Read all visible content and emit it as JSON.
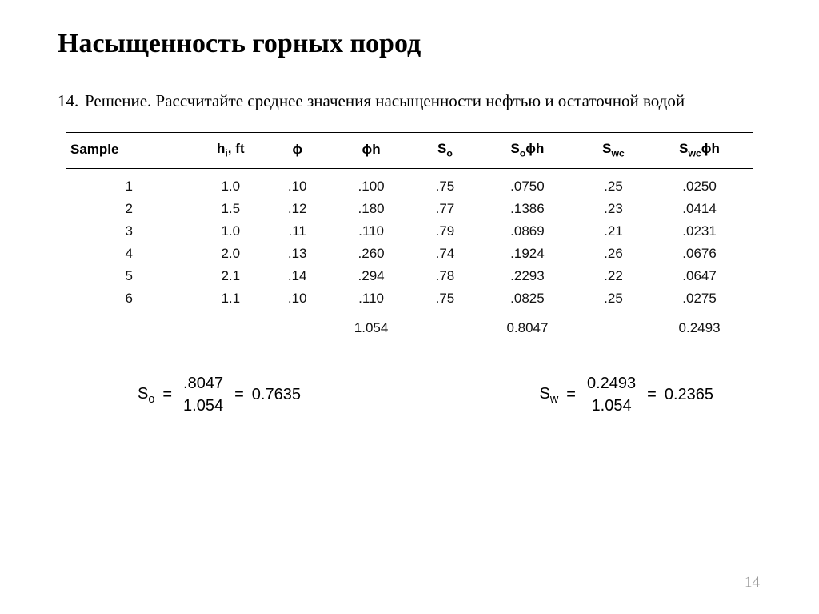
{
  "title": "Насыщенность горных пород",
  "problem_number": "14.",
  "problem_text": "Решение. Рассчитайте среднее значения насыщенности нефтью и остаточной водой",
  "table": {
    "columns": {
      "sample": "Sample",
      "hi": "h",
      "hi_sub": "i",
      "hi_unit": ", ft",
      "phi": "ϕ",
      "phih": "ϕh",
      "so": "S",
      "so_sub": "o",
      "soph": "S",
      "soph_sub": "o",
      "soph_tail": "ϕh",
      "swc": "S",
      "swc_sub": "wc",
      "swcph": "S",
      "swcph_sub": "wc",
      "swcph_tail": "ϕh"
    },
    "rows": [
      {
        "sample": "1",
        "hi": "1.0",
        "phi": ".10",
        "phih": ".100",
        "so": ".75",
        "soph": ".0750",
        "swc": ".25",
        "swcph": ".0250"
      },
      {
        "sample": "2",
        "hi": "1.5",
        "phi": ".12",
        "phih": ".180",
        "so": ".77",
        "soph": ".1386",
        "swc": ".23",
        "swcph": ".0414"
      },
      {
        "sample": "3",
        "hi": "1.0",
        "phi": ".11",
        "phih": ".110",
        "so": ".79",
        "soph": ".0869",
        "swc": ".21",
        "swcph": ".0231"
      },
      {
        "sample": "4",
        "hi": "2.0",
        "phi": ".13",
        "phih": ".260",
        "so": ".74",
        "soph": ".1924",
        "swc": ".26",
        "swcph": ".0676"
      },
      {
        "sample": "5",
        "hi": "2.1",
        "phi": ".14",
        "phih": ".294",
        "so": ".78",
        "soph": ".2293",
        "swc": ".22",
        "swcph": ".0647"
      },
      {
        "sample": "6",
        "hi": "1.1",
        "phi": ".10",
        "phih": ".110",
        "so": ".75",
        "soph": ".0825",
        "swc": ".25",
        "swcph": ".0275"
      }
    ],
    "totals": {
      "phih": "1.054",
      "soph": "0.8047",
      "swcph": "0.2493"
    }
  },
  "equations": {
    "so": {
      "label": "S",
      "sub": "o",
      "eq": " = ",
      "num": ".8047",
      "den": "1.054",
      "eq2": " = ",
      "result": "0.7635"
    },
    "sw": {
      "label": "S",
      "sub": "w",
      "eq": " = ",
      "num": "0.2493",
      "den": "1.054",
      "eq2": " = ",
      "result": "0.2365"
    }
  },
  "page_number": "14"
}
